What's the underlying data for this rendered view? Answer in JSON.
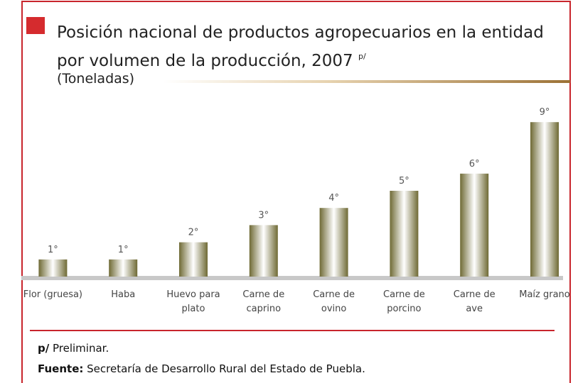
{
  "chart_data": {
    "type": "bar",
    "title": "Posición nacional de productos agropecuarios en la entidad por volumen de la producción, 2007",
    "title_superscript": "p/",
    "subtitle": "(Toneladas)",
    "categories": [
      "Flor (gruesa)",
      "Haba",
      "Huevo para plato",
      "Carne de caprino",
      "Carne de ovino",
      "Carne de porcino",
      "Carne de ave",
      "Maíz grano"
    ],
    "values": [
      1,
      1,
      2,
      3,
      4,
      5,
      6,
      9
    ],
    "value_labels": [
      "1°",
      "1°",
      "2°",
      "3°",
      "4°",
      "5°",
      "6°",
      "9°"
    ]
  },
  "footnotes": [
    {
      "key": "p/",
      "text": "Preliminar."
    },
    {
      "key": "Fuente:",
      "text": "Secretaría de Desarrollo Rural del Estado de Puebla."
    }
  ]
}
